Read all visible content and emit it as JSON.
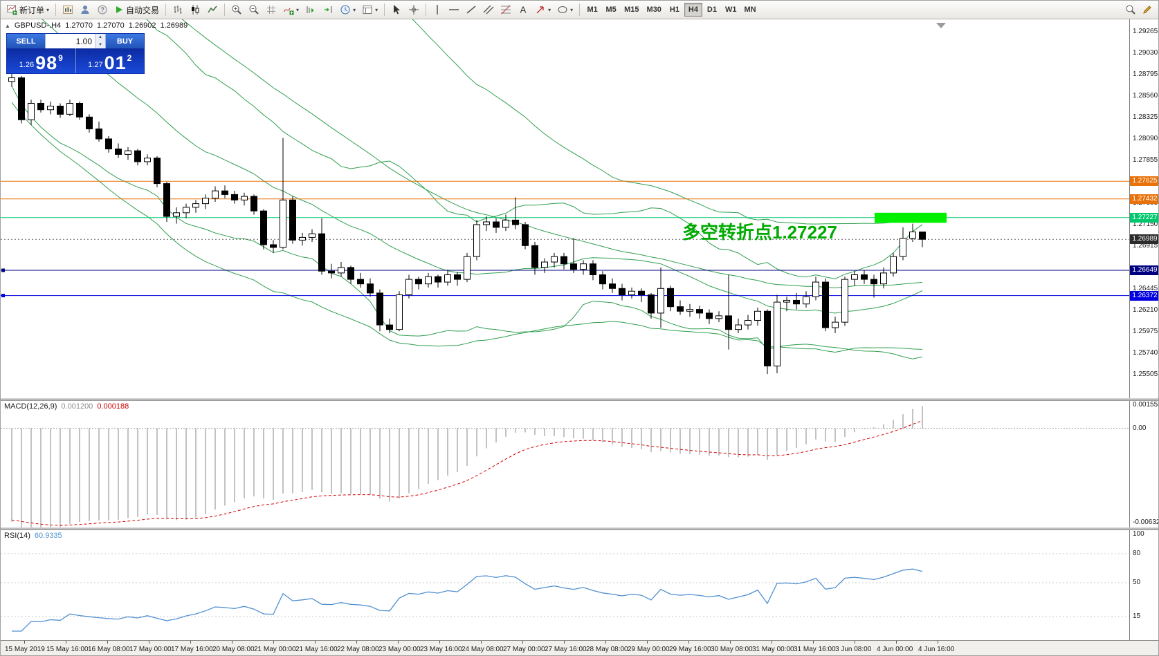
{
  "icons": {
    "caret": "▾",
    "play": "▶",
    "marker": "▲",
    "up": "▲",
    "down": "▼"
  },
  "toolbar": {
    "new_order_label": "新订单",
    "autotrading_label": "自动交易",
    "timeframes": [
      "M1",
      "M5",
      "M15",
      "M30",
      "H1",
      "H4",
      "D1",
      "W1",
      "MN"
    ],
    "active_timeframe": "H4"
  },
  "chart": {
    "symbol_header": "GBPUSD-.H4",
    "ohlc": {
      "open": "1.27070",
      "high": "1.27070",
      "low": "1.26902",
      "close": "1.26989"
    },
    "trade_widget": {
      "sell_label": "SELL",
      "buy_label": "BUY",
      "lot_value": "1.00",
      "sell_price": {
        "small": "1.26",
        "big": "98",
        "sup": "9"
      },
      "buy_price": {
        "small": "1.27",
        "big": "01",
        "sup": "2"
      }
    },
    "annotation": {
      "text": "多空转折点1.27227",
      "color": "#00AA00"
    },
    "levels": [
      {
        "price": 1.27625,
        "label": "1.27625",
        "color": "#E8710A",
        "handle": false
      },
      {
        "price": 1.27432,
        "label": "1.27432",
        "color": "#E8710A",
        "handle": false
      },
      {
        "price": 1.27227,
        "label": "1.27227",
        "color": "#00C86E",
        "handle": false
      },
      {
        "price": 1.26649,
        "label": "1.26649",
        "color": "#000080",
        "handle": true
      },
      {
        "price": 1.26372,
        "label": "1.26372",
        "color": "#0000E0",
        "handle": true
      }
    ],
    "current_price": {
      "price": 1.26989,
      "label": "1.26989",
      "color": "#2b2b2b"
    },
    "highlight_rect": {
      "price_top": 1.2728,
      "price_bottom": 1.2717,
      "color": "#00F000"
    },
    "price_axis_labels": [
      "1.29265",
      "1.29030",
      "1.28795",
      "1.28560",
      "1.28325",
      "1.28090",
      "1.27855",
      "1.27385",
      "1.27150",
      "1.26915",
      "1.26445",
      "1.26210",
      "1.25975",
      "1.25740",
      "1.25505"
    ],
    "band_color": "#2f9e4e"
  },
  "macd": {
    "header": "MACD(12,26,9)",
    "value_main": "0.001200",
    "value_signal": "0.000188",
    "axis": [
      "0.001558",
      "0.00",
      "-0.006323"
    ],
    "histogram_color": "#a8a8a8",
    "signal_color": "#d40000"
  },
  "rsi": {
    "header": "RSI(14)",
    "value": "60.9335",
    "axis": [
      "100",
      "80",
      "50",
      "15"
    ],
    "line_color": "#4f8fd0"
  },
  "time_axis": [
    "15 May 2019",
    "15 May 16:00",
    "16 May 08:00",
    "17 May 00:00",
    "17 May 16:00",
    "20 May 08:00",
    "21 May 00:00",
    "21 May 16:00",
    "22 May 08:00",
    "23 May 00:00",
    "23 May 16:00",
    "24 May 08:00",
    "27 May 00:00",
    "27 May 16:00",
    "28 May 08:00",
    "29 May 00:00",
    "29 May 16:00",
    "30 May 08:00",
    "31 May 00:00",
    "31 May 16:00",
    "3 Jun 08:00",
    "4 Jun 00:00",
    "4 Jun 16:00"
  ],
  "chart_data": {
    "type": "candlestick",
    "symbol": "GBPUSD",
    "timeframe": "H4",
    "y_range": [
      1.25247,
      1.29401
    ],
    "indicators": {
      "bollinger_periods": [
        20,
        48
      ],
      "bollinger_deviation": 2,
      "macd": [
        12,
        26,
        9
      ],
      "rsi": 14
    },
    "candles": [
      [
        1.2872,
        1.288,
        1.2866,
        1.2876
      ],
      [
        1.2876,
        1.2878,
        1.2826,
        1.283
      ],
      [
        1.283,
        1.2852,
        1.2824,
        1.2848
      ],
      [
        1.2848,
        1.2852,
        1.2838,
        1.2841
      ],
      [
        1.2841,
        1.285,
        1.2836,
        1.2845
      ],
      [
        1.2845,
        1.2848,
        1.2832,
        1.2836
      ],
      [
        1.2836,
        1.2852,
        1.2834,
        1.2848
      ],
      [
        1.2848,
        1.285,
        1.283,
        1.2833
      ],
      [
        1.2833,
        1.2836,
        1.2816,
        1.282
      ],
      [
        1.282,
        1.2828,
        1.2806,
        1.2809
      ],
      [
        1.2809,
        1.2812,
        1.2794,
        1.2798
      ],
      [
        1.2798,
        1.2804,
        1.2788,
        1.2792
      ],
      [
        1.2792,
        1.28,
        1.2786,
        1.2796
      ],
      [
        1.2796,
        1.2798,
        1.278,
        1.2784
      ],
      [
        1.2784,
        1.2792,
        1.278,
        1.2788
      ],
      [
        1.2788,
        1.279,
        1.2756,
        1.276
      ],
      [
        1.276,
        1.2762,
        1.2718,
        1.2724
      ],
      [
        1.2724,
        1.2734,
        1.2716,
        1.2728
      ],
      [
        1.2728,
        1.2738,
        1.2722,
        1.2734
      ],
      [
        1.2734,
        1.2742,
        1.2728,
        1.2738
      ],
      [
        1.2738,
        1.2748,
        1.2732,
        1.2744
      ],
      [
        1.2744,
        1.2757,
        1.274,
        1.2752
      ],
      [
        1.2752,
        1.2758,
        1.2744,
        1.2748
      ],
      [
        1.2748,
        1.2752,
        1.2738,
        1.2742
      ],
      [
        1.2742,
        1.275,
        1.2736,
        1.2746
      ],
      [
        1.2746,
        1.2748,
        1.2726,
        1.273
      ],
      [
        1.273,
        1.2732,
        1.2688,
        1.2693
      ],
      [
        1.2693,
        1.2698,
        1.2684,
        1.269
      ],
      [
        1.269,
        1.281,
        1.2688,
        1.2742
      ],
      [
        1.2742,
        1.2746,
        1.2694,
        1.2698
      ],
      [
        1.2698,
        1.2706,
        1.2692,
        1.2701
      ],
      [
        1.2701,
        1.271,
        1.2696,
        1.2705
      ],
      [
        1.2705,
        1.2722,
        1.266,
        1.2664
      ],
      [
        1.2664,
        1.2672,
        1.2656,
        1.2662
      ],
      [
        1.2662,
        1.2674,
        1.2658,
        1.2668
      ],
      [
        1.2668,
        1.267,
        1.265,
        1.2655
      ],
      [
        1.2655,
        1.2662,
        1.2646,
        1.265
      ],
      [
        1.265,
        1.2656,
        1.2636,
        1.264
      ],
      [
        1.264,
        1.2644,
        1.2598,
        1.2605
      ],
      [
        1.2605,
        1.2612,
        1.2596,
        1.26
      ],
      [
        1.26,
        1.2642,
        1.2598,
        1.2638
      ],
      [
        1.2638,
        1.266,
        1.2634,
        1.2655
      ],
      [
        1.2655,
        1.2658,
        1.2644,
        1.265
      ],
      [
        1.265,
        1.2662,
        1.2646,
        1.2658
      ],
      [
        1.2658,
        1.266,
        1.2646,
        1.2652
      ],
      [
        1.2652,
        1.2665,
        1.2648,
        1.266
      ],
      [
        1.266,
        1.2663,
        1.2648,
        1.2655
      ],
      [
        1.2655,
        1.2684,
        1.2652,
        1.268
      ],
      [
        1.268,
        1.272,
        1.2676,
        1.2715
      ],
      [
        1.2715,
        1.2724,
        1.2708,
        1.2718
      ],
      [
        1.2718,
        1.2722,
        1.2706,
        1.2712
      ],
      [
        1.2712,
        1.2726,
        1.2708,
        1.272
      ],
      [
        1.272,
        1.2745,
        1.271,
        1.2715
      ],
      [
        1.2715,
        1.2718,
        1.2688,
        1.2692
      ],
      [
        1.2692,
        1.2696,
        1.266,
        1.2668
      ],
      [
        1.2668,
        1.2678,
        1.2662,
        1.2674
      ],
      [
        1.2674,
        1.2684,
        1.2668,
        1.268
      ],
      [
        1.268,
        1.2684,
        1.2666,
        1.2672
      ],
      [
        1.2672,
        1.27,
        1.2662,
        1.2666
      ],
      [
        1.2666,
        1.2676,
        1.266,
        1.2672
      ],
      [
        1.2672,
        1.2676,
        1.2654,
        1.266
      ],
      [
        1.266,
        1.2664,
        1.2644,
        1.265
      ],
      [
        1.265,
        1.2656,
        1.264,
        1.2645
      ],
      [
        1.2645,
        1.265,
        1.2632,
        1.2638
      ],
      [
        1.2638,
        1.2646,
        1.2634,
        1.2642
      ],
      [
        1.2642,
        1.2645,
        1.263,
        1.2638
      ],
      [
        1.2638,
        1.264,
        1.2612,
        1.2618
      ],
      [
        1.2618,
        1.2668,
        1.2602,
        1.2645
      ],
      [
        1.2645,
        1.2648,
        1.262,
        1.2625
      ],
      [
        1.2625,
        1.2632,
        1.2616,
        1.262
      ],
      [
        1.262,
        1.2628,
        1.2614,
        1.2622
      ],
      [
        1.2622,
        1.2626,
        1.2612,
        1.2618
      ],
      [
        1.2618,
        1.2622,
        1.2606,
        1.2612
      ],
      [
        1.2612,
        1.262,
        1.2608,
        1.2615
      ],
      [
        1.2615,
        1.266,
        1.2578,
        1.26
      ],
      [
        1.26,
        1.2612,
        1.2596,
        1.2605
      ],
      [
        1.2605,
        1.2616,
        1.26,
        1.261
      ],
      [
        1.261,
        1.2624,
        1.2604,
        1.262
      ],
      [
        1.262,
        1.2622,
        1.2551,
        1.256
      ],
      [
        1.256,
        1.2638,
        1.2552,
        1.263
      ],
      [
        1.263,
        1.2636,
        1.262,
        1.2632
      ],
      [
        1.2632,
        1.264,
        1.2622,
        1.2628
      ],
      [
        1.2628,
        1.2642,
        1.2624,
        1.2636
      ],
      [
        1.2636,
        1.2658,
        1.2632,
        1.2652
      ],
      [
        1.2652,
        1.2656,
        1.2598,
        1.2602
      ],
      [
        1.2602,
        1.2614,
        1.2596,
        1.2608
      ],
      [
        1.2608,
        1.2658,
        1.2604,
        1.2655
      ],
      [
        1.2655,
        1.2664,
        1.2648,
        1.266
      ],
      [
        1.266,
        1.2665,
        1.265,
        1.2655
      ],
      [
        1.2655,
        1.266,
        1.2635,
        1.265
      ],
      [
        1.265,
        1.2668,
        1.2645,
        1.2662
      ],
      [
        1.2662,
        1.2684,
        1.2658,
        1.268
      ],
      [
        1.268,
        1.2712,
        1.2676,
        1.27
      ],
      [
        1.27,
        1.2716,
        1.2696,
        1.2707
      ],
      [
        1.2707,
        1.2707,
        1.26902,
        1.26989
      ]
    ]
  }
}
